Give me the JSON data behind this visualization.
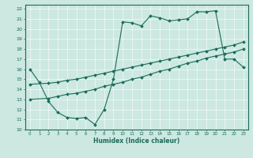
{
  "title": "",
  "xlabel": "Humidex (Indice chaleur)",
  "bg_color": "#cce8e0",
  "line_color": "#1a6b5a",
  "grid_color": "#b8d8d0",
  "xlim": [
    -0.5,
    23.5
  ],
  "ylim": [
    10,
    22.4
  ],
  "xticks": [
    0,
    1,
    2,
    3,
    4,
    5,
    6,
    7,
    8,
    9,
    10,
    11,
    12,
    13,
    14,
    15,
    16,
    17,
    18,
    19,
    20,
    21,
    22,
    23
  ],
  "yticks": [
    10,
    11,
    12,
    13,
    14,
    15,
    16,
    17,
    18,
    19,
    20,
    21,
    22
  ],
  "line1_x": [
    0,
    1,
    2,
    3,
    4,
    5,
    6,
    7,
    8,
    9,
    10,
    11,
    12,
    13,
    14,
    15,
    16,
    17,
    18,
    19,
    20,
    21,
    22,
    23
  ],
  "line1_y": [
    16.0,
    14.7,
    12.8,
    11.7,
    11.2,
    11.1,
    11.2,
    10.5,
    12.0,
    15.0,
    20.7,
    20.6,
    20.3,
    21.3,
    21.1,
    20.8,
    20.9,
    21.0,
    21.7,
    21.7,
    21.8,
    17.0,
    17.0,
    16.2
  ],
  "line2_x": [
    0,
    2,
    3,
    4,
    5,
    6,
    7,
    8,
    9,
    10,
    11,
    12,
    13,
    14,
    15,
    16,
    17,
    18,
    19,
    20,
    21,
    22,
    23
  ],
  "line2_y": [
    13.0,
    13.1,
    13.3,
    13.5,
    13.6,
    13.8,
    14.0,
    14.3,
    14.5,
    14.7,
    15.0,
    15.2,
    15.5,
    15.8,
    16.0,
    16.3,
    16.6,
    16.8,
    17.1,
    17.3,
    17.5,
    17.7,
    18.0
  ],
  "line3_x": [
    0,
    2,
    3,
    4,
    5,
    6,
    7,
    8,
    9,
    10,
    11,
    12,
    13,
    14,
    15,
    16,
    17,
    18,
    19,
    20,
    21,
    22,
    23
  ],
  "line3_y": [
    14.5,
    14.6,
    14.7,
    14.9,
    15.0,
    15.2,
    15.4,
    15.6,
    15.8,
    16.0,
    16.2,
    16.4,
    16.6,
    16.8,
    17.0,
    17.2,
    17.4,
    17.6,
    17.8,
    18.0,
    18.2,
    18.4,
    18.7
  ]
}
